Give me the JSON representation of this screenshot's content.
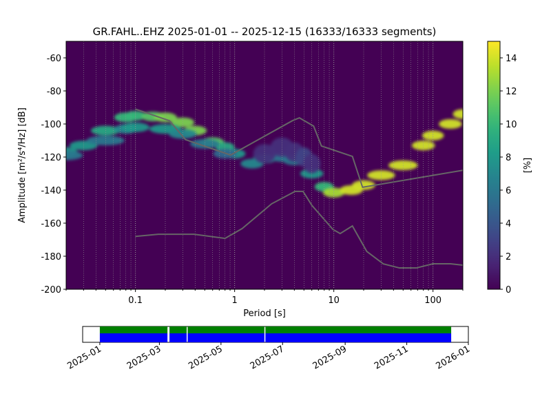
{
  "chart_data": [
    {
      "type": "ppsd",
      "title": "GR.FAHL..EHZ   2025-01-01 -- 2025-12-15  (16333/16333 segments)",
      "x_label": "Period [s]",
      "y_label": "Amplitude [m²/s⁴/Hz] [dB]",
      "xscale": "log",
      "xlim": [
        0.02,
        200
      ],
      "ylim": [
        -200,
        -50
      ],
      "xticks": [
        0.1,
        1,
        10,
        100
      ],
      "xminorticks": [
        0.02,
        0.03,
        0.04,
        0.05,
        0.06,
        0.07,
        0.08,
        0.09,
        0.2,
        0.3,
        0.4,
        0.5,
        0.6,
        0.7,
        0.8,
        0.9,
        2,
        3,
        4,
        5,
        6,
        7,
        8,
        9,
        20,
        30,
        40,
        50,
        60,
        70,
        80,
        90,
        200
      ],
      "yticks": [
        -200,
        -180,
        -160,
        -140,
        -120,
        -100,
        -80,
        -60
      ],
      "grid": "x",
      "colormap": "viridis",
      "colorbar_label": "[%]",
      "clim": [
        0,
        15
      ],
      "cticks": [
        0,
        2,
        4,
        6,
        8,
        10,
        12,
        14
      ],
      "ridges": [
        {
          "x": [
            0.02,
            0.03,
            0.05,
            0.08,
            0.1,
            0.15,
            0.2,
            0.3,
            0.4,
            0.6,
            0.8,
            1,
            1.5,
            2,
            3,
            4,
            6,
            8,
            10,
            15,
            20,
            30,
            50,
            80,
            100,
            150,
            200
          ],
          "values": [
            -117,
            -113,
            -104,
            -96,
            -95,
            -95.5,
            -96,
            -99,
            -104,
            -111,
            -114,
            -118,
            -124,
            -121,
            -120,
            -122,
            -130,
            -138,
            -141.5,
            -140,
            -137,
            -131,
            -125,
            -113,
            -107,
            -100,
            -94
          ],
          "z": [
            8,
            8,
            9,
            10,
            10,
            11,
            12,
            12,
            12,
            11,
            9,
            8,
            7,
            7,
            6,
            6,
            8,
            10,
            13,
            14,
            14,
            14,
            14,
            14,
            14,
            14,
            14
          ]
        },
        {
          "x": [
            0.02,
            0.05,
            0.08,
            0.1,
            0.2,
            0.3,
            0.5,
            0.8
          ],
          "values": [
            -119,
            -110,
            -103,
            -102,
            -103,
            -106,
            -112,
            -118
          ],
          "z": [
            6,
            6,
            7,
            8,
            8,
            7,
            6,
            5
          ]
        },
        {
          "x": [
            2,
            3,
            4,
            5,
            6
          ],
          "values": [
            -118,
            -114,
            -117,
            -120,
            -124
          ],
          "z": [
            2,
            2,
            2,
            3,
            2
          ]
        }
      ],
      "noise_models": {
        "color": "#666666",
        "lines": [
          {
            "x": [
              0.1,
              0.22,
              0.32,
              0.91,
              3.83,
              4.5,
              6.26,
              7.5,
              15.4,
              19.5,
              200
            ],
            "values": [
              -91,
              -98,
              -109.5,
              -118.8,
              -98,
              -96.3,
              -101.3,
              -113.3,
              -119.6,
              -138.3,
              -128
            ]
          },
          {
            "x": [
              0.1,
              0.17,
              0.39,
              0.8,
              1.19,
              2.36,
              4.07,
              4.9,
              6,
              9.8,
              11.6,
              15.4,
              21.5,
              31.5,
              45.9,
              68,
              100,
              150,
              200
            ],
            "values": [
              -168,
              -166.7,
              -166.7,
              -169.2,
              -163.3,
              -148.3,
              -140.8,
              -140.8,
              -149.2,
              -163.8,
              -166.3,
              -161.7,
              -177.1,
              -184.6,
              -187.1,
              -187.1,
              -184.6,
              -184.6,
              -185.4
            ]
          }
        ]
      }
    },
    {
      "type": "availability",
      "xlim": [
        "2024-12-15",
        "2026-01-01"
      ],
      "xticks": [
        "2025-01",
        "2025-03",
        "2025-05",
        "2025-07",
        "2025-09",
        "2025-11",
        "2026-01"
      ],
      "colors": [
        "#008000",
        "#0000ff"
      ],
      "segments": [
        [
          "2025-01-01",
          "2025-03-09"
        ],
        [
          "2025-03-11",
          "2025-03-28"
        ],
        [
          "2025-03-29",
          "2025-06-13"
        ],
        [
          "2025-06-14",
          "2025-12-15"
        ]
      ]
    }
  ]
}
